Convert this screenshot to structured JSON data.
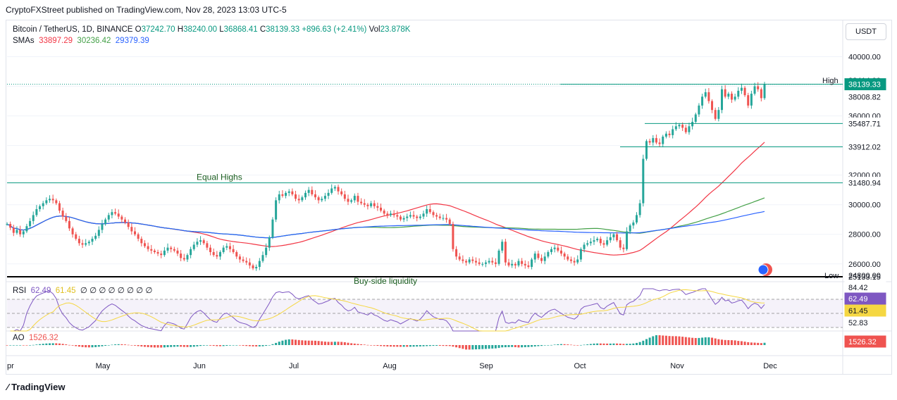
{
  "publisher_line": "CryptoFXStreet published on TradingView.com, Nov 28, 2023 13:03 UTC-5",
  "footer_logo": "TradingView",
  "currency_button": "USDT",
  "legend": {
    "symbol": "Bitcoin / TetherUS, 1D, BINANCE",
    "o_label": "O",
    "o": "37242.70",
    "h_label": "H",
    "h": "38240.00",
    "l_label": "L",
    "l": "36868.41",
    "c_label": "C",
    "c": "38139.33",
    "change": "+896.63 (+2.41%)",
    "vol_label": "Vol",
    "vol": "23.878K",
    "sma_label": "SMAs",
    "sma1": "33897.29",
    "sma2": "30236.42",
    "sma3": "29379.39",
    "rsi_label": "RSI",
    "rsi1": "62.49",
    "rsi2": "61.45",
    "rsi_zeros": "∅ ∅ ∅ ∅ ∅ ∅ ∅ ∅",
    "ao_label": "AO",
    "ao": "1526.32"
  },
  "colors": {
    "up": "#26a69a",
    "down": "#ef5350",
    "sma1": "#f23645",
    "sma2": "#43a047",
    "sma3": "#2962ff",
    "rsi": "#7e57c2",
    "rsi_ma": "#f5d742",
    "level": "#089981"
  },
  "chart_data": [
    {
      "type": "candlestick",
      "ylim": [
        24800,
        40500
      ],
      "x_ticks": [
        "pr",
        "May",
        "Jun",
        "Jul",
        "Aug",
        "Sep",
        "Oct",
        "Nov",
        "Dec"
      ],
      "y_ticks": [
        "40000.00",
        "38000.00",
        "36000.00",
        "34000.00",
        "32000.00",
        "30000.00",
        "28000.00",
        "26000.00"
      ],
      "high_label": "High",
      "high_value": "38414.00",
      "low_label": "Low",
      "low_value": "24800.00",
      "last_price": "38139.33",
      "price_tags": [
        "38008.82",
        "35487.71",
        "33912.02",
        "31480.94",
        "25133.15"
      ],
      "levels": [
        {
          "value": 38139.33,
          "label": "38139.33"
        },
        {
          "value": 35487.71,
          "label": "35487.71"
        },
        {
          "value": 33912.02,
          "label": "33912.02"
        },
        {
          "value": 31480.94,
          "label": "31480.94"
        },
        {
          "value": 25133.15,
          "label": "25133.15"
        }
      ],
      "annotations": [
        "Equal Highs",
        "Buy-side liquidity"
      ],
      "closes": [
        28700,
        28450,
        28100,
        28300,
        28000,
        28200,
        28550,
        28900,
        29300,
        29700,
        29900,
        30100,
        30300,
        30400,
        30300,
        30100,
        29600,
        29200,
        28900,
        28400,
        28000,
        27700,
        27400,
        27300,
        27400,
        27500,
        27700,
        27900,
        28300,
        28700,
        29000,
        29300,
        29500,
        29400,
        29200,
        29000,
        28800,
        28500,
        28200,
        28000,
        27700,
        27400,
        27200,
        27000,
        26900,
        26800,
        26700,
        26600,
        26900,
        27100,
        27000,
        26900,
        26700,
        26400,
        26300,
        26600,
        27000,
        27300,
        27500,
        27600,
        27400,
        27100,
        26800,
        26600,
        26500,
        26800,
        27100,
        27200,
        27000,
        26800,
        26500,
        26300,
        26200,
        26100,
        25900,
        25700,
        25800,
        26200,
        26600,
        27100,
        27800,
        29000,
        30300,
        30700,
        30600,
        30800,
        30900,
        30700,
        30400,
        30300,
        30500,
        30800,
        31000,
        30700,
        30500,
        30300,
        30400,
        30600,
        30800,
        31100,
        31200,
        30900,
        30700,
        30400,
        30200,
        30300,
        30600,
        30200,
        30100,
        30000,
        29900,
        30100,
        29900,
        29800,
        29600,
        29400,
        29300,
        29400,
        29300,
        29200,
        29000,
        29100,
        29200,
        29300,
        29200,
        29100,
        29200,
        29400,
        29700,
        29500,
        29300,
        29200,
        29100,
        29100,
        29000,
        28700,
        27000,
        26500,
        26300,
        26200,
        26100,
        26300,
        26200,
        26100,
        26000,
        26000,
        26100,
        26200,
        26100,
        26000,
        26900,
        27500,
        26100,
        25900,
        26000,
        25900,
        26200,
        26000,
        25900,
        25800,
        26300,
        26700,
        26400,
        26200,
        26500,
        26800,
        27000,
        27100,
        26900,
        26700,
        26500,
        26300,
        26200,
        26100,
        26300,
        27000,
        27300,
        27400,
        27500,
        27600,
        27700,
        27400,
        27300,
        27600,
        27800,
        28000,
        27600,
        27100,
        27000,
        28200,
        28600,
        28800,
        29300,
        30100,
        33100,
        34300,
        34200,
        34500,
        34200,
        34100,
        34600,
        34800,
        34700,
        35100,
        35300,
        35400,
        35200,
        34900,
        35300,
        35600,
        36100,
        36700,
        37300,
        37600,
        37000,
        36400,
        35800,
        36400,
        37800,
        37300,
        37500,
        37100,
        37300,
        37700,
        37900,
        37400,
        36700,
        37500,
        38000,
        37800,
        37200,
        38139
      ]
    },
    {
      "type": "line",
      "name": "RSI",
      "ylim": [
        40,
        90
      ],
      "y_ticks": [
        "84.42",
        "52.83"
      ],
      "value": "62.49",
      "ma_value": "61.45"
    },
    {
      "type": "bar",
      "name": "AO",
      "value": "1526.32"
    }
  ]
}
